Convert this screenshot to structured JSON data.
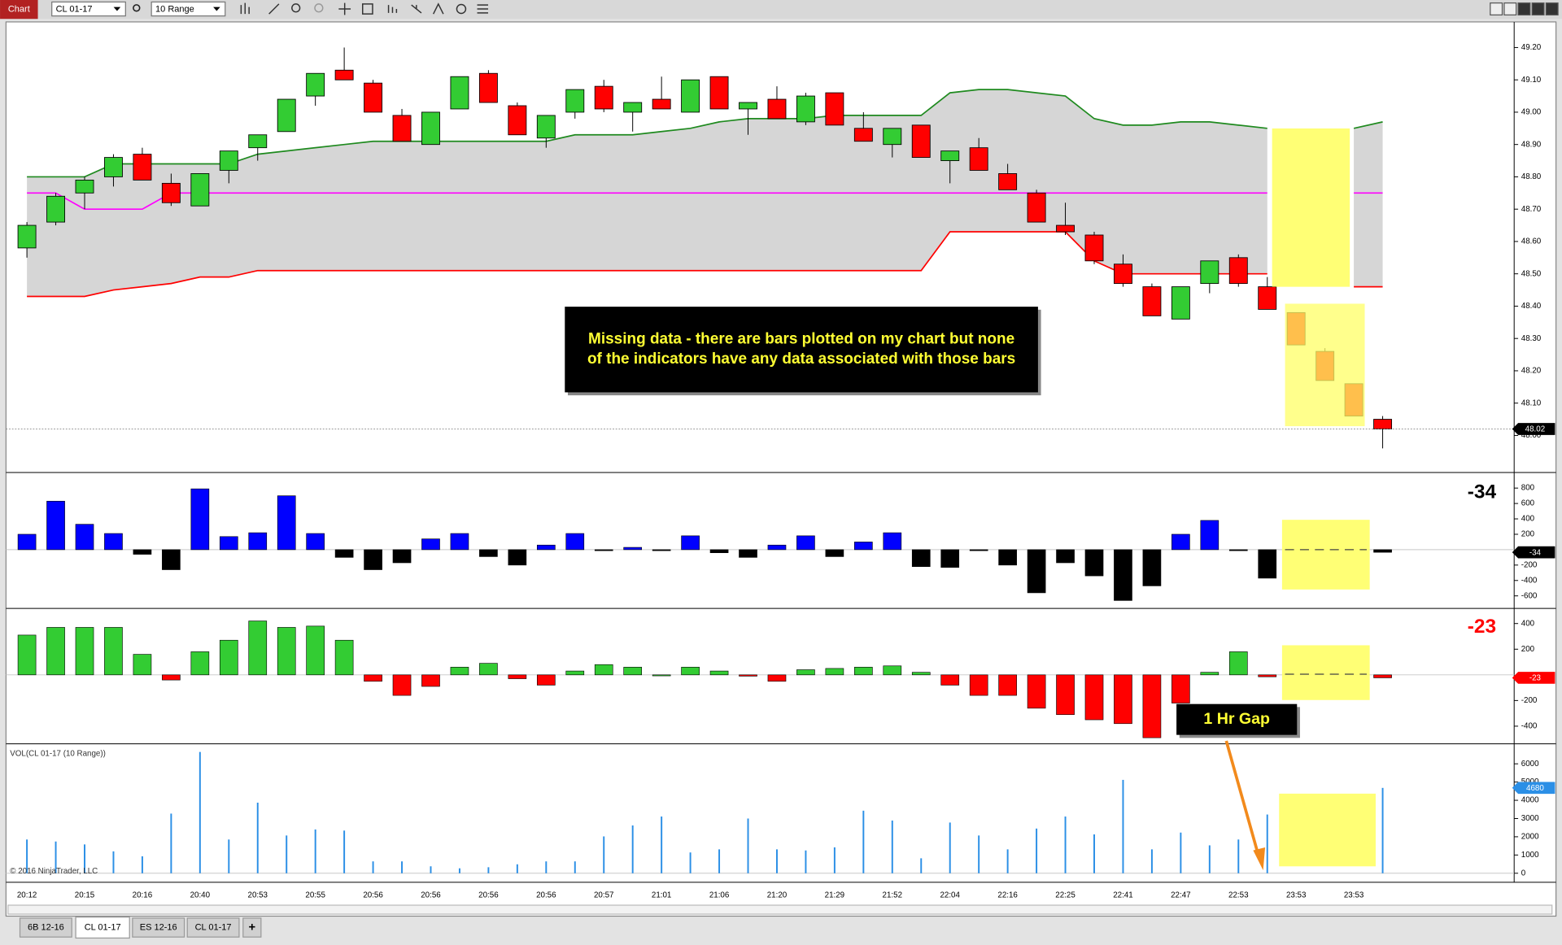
{
  "window": {
    "title": "Chart",
    "instrument": "CL 01-17",
    "bar_type": "10 Range"
  },
  "tabs": [
    "6B 12-16",
    "CL 01-17",
    "ES 12-16",
    "CL 01-17"
  ],
  "new_tab": "+",
  "annotations": [
    "Missing data - there are bars plotted on my chart but none of the indicators have any data associated with those bars",
    "1 Hr Gap"
  ],
  "chart_data": [
    {
      "type": "candlestick",
      "categories": [
        "20:12",
        null,
        "20:15",
        null,
        "20:16",
        null,
        "20:40",
        null,
        "20:53",
        null,
        "20:55",
        null,
        "20:56",
        null,
        "20:56",
        null,
        "20:56",
        null,
        "20:56",
        null,
        "20:57",
        null,
        "21:01",
        null,
        "21:06",
        null,
        "21:20",
        null,
        "21:29",
        null,
        "21:52",
        null,
        "22:04",
        null,
        "22:16",
        null,
        "22:25",
        null,
        "22:41",
        null,
        "22:47",
        null,
        "22:53",
        null,
        "23:53",
        null,
        "23:53",
        null
      ],
      "open": [
        48.58,
        48.66,
        48.75,
        48.8,
        48.87,
        48.78,
        48.71,
        48.82,
        48.89,
        48.94,
        49.05,
        49.13,
        49.09,
        48.99,
        48.9,
        49.01,
        49.12,
        49.02,
        48.92,
        49.0,
        49.08,
        49.0,
        49.04,
        49.0,
        49.11,
        49.01,
        49.04,
        48.97,
        49.06,
        48.95,
        48.9,
        48.96,
        48.85,
        48.89,
        48.81,
        48.75,
        48.65,
        48.62,
        48.53,
        48.46,
        48.36,
        48.47,
        48.55,
        48.46,
        48.38,
        48.26,
        48.16,
        48.05
      ],
      "high": [
        48.66,
        48.75,
        48.8,
        48.87,
        48.89,
        48.81,
        48.81,
        48.88,
        48.93,
        49.04,
        49.12,
        49.2,
        49.1,
        49.01,
        49.0,
        49.11,
        49.13,
        49.03,
        48.99,
        49.07,
        49.1,
        49.03,
        49.11,
        49.1,
        49.11,
        49.03,
        49.08,
        49.06,
        49.06,
        49.0,
        48.95,
        48.96,
        48.88,
        48.92,
        48.84,
        48.76,
        48.72,
        48.63,
        48.56,
        48.47,
        48.46,
        48.54,
        48.56,
        48.49,
        48.38,
        48.27,
        48.16,
        48.06
      ],
      "low": [
        48.55,
        48.65,
        48.7,
        48.77,
        48.79,
        48.71,
        48.71,
        48.78,
        48.85,
        48.94,
        49.02,
        49.1,
        49.0,
        48.91,
        48.9,
        49.01,
        49.03,
        48.93,
        48.89,
        48.98,
        49.0,
        48.94,
        49.01,
        49.0,
        49.01,
        48.93,
        48.98,
        48.96,
        48.96,
        48.91,
        48.86,
        48.86,
        48.78,
        48.82,
        48.76,
        48.66,
        48.62,
        48.53,
        48.46,
        48.37,
        48.36,
        48.44,
        48.46,
        48.39,
        48.28,
        48.17,
        48.06,
        47.96
      ],
      "close": [
        48.65,
        48.74,
        48.79,
        48.86,
        48.79,
        48.72,
        48.81,
        48.88,
        48.93,
        49.04,
        49.12,
        49.1,
        49.0,
        48.91,
        49.0,
        49.11,
        49.03,
        48.93,
        48.99,
        49.07,
        49.01,
        49.03,
        49.01,
        49.1,
        49.01,
        49.03,
        48.98,
        49.05,
        48.96,
        48.91,
        48.95,
        48.86,
        48.88,
        48.82,
        48.76,
        48.66,
        48.63,
        48.54,
        48.47,
        48.37,
        48.46,
        48.54,
        48.47,
        48.39,
        48.28,
        48.17,
        48.06,
        48.02
      ],
      "up_color": "#33cc33",
      "down_color": "#ff0000",
      "band_fill": "#d6d6d6",
      "lines": [
        {
          "color": "#1f8a1f",
          "values": [
            48.8,
            48.8,
            48.8,
            48.84,
            48.84,
            48.84,
            48.84,
            48.84,
            48.87,
            48.88,
            48.89,
            48.9,
            48.91,
            48.91,
            48.91,
            48.91,
            48.91,
            48.91,
            48.91,
            48.93,
            48.93,
            48.93,
            48.94,
            48.95,
            48.97,
            48.98,
            48.98,
            48.98,
            48.99,
            48.99,
            48.99,
            48.99,
            49.06,
            49.07,
            49.07,
            49.06,
            49.05,
            48.98,
            48.96,
            48.96,
            48.97,
            48.97,
            48.96,
            48.95,
            null,
            null,
            48.95,
            48.97
          ]
        },
        {
          "color": "#ff00ff",
          "values": [
            48.75,
            48.75,
            48.7,
            48.7,
            48.7,
            48.75,
            48.75,
            48.75,
            48.75,
            48.75,
            48.75,
            48.75,
            48.75,
            48.75,
            48.75,
            48.75,
            48.75,
            48.75,
            48.75,
            48.75,
            48.75,
            48.75,
            48.75,
            48.75,
            48.75,
            48.75,
            48.75,
            48.75,
            48.75,
            48.75,
            48.75,
            48.75,
            48.75,
            48.75,
            48.75,
            48.75,
            48.75,
            48.75,
            48.75,
            48.75,
            48.75,
            48.75,
            48.75,
            48.75,
            null,
            null,
            48.75,
            48.75
          ]
        },
        {
          "color": "#ff0000",
          "values": [
            48.43,
            48.43,
            48.43,
            48.45,
            48.46,
            48.47,
            48.49,
            48.49,
            48.51,
            48.51,
            48.51,
            48.51,
            48.51,
            48.51,
            48.51,
            48.51,
            48.51,
            48.51,
            48.51,
            48.51,
            48.51,
            48.51,
            48.51,
            48.51,
            48.51,
            48.51,
            48.51,
            48.51,
            48.51,
            48.51,
            48.51,
            48.51,
            48.63,
            48.63,
            48.63,
            48.63,
            48.63,
            48.54,
            48.5,
            48.5,
            48.5,
            48.5,
            48.5,
            48.5,
            null,
            null,
            48.46,
            48.46
          ]
        }
      ],
      "ylim": [
        47.89,
        49.27
      ],
      "yticks": [
        {
          "value": 49.2,
          "label": "49.20"
        },
        {
          "value": 49.1,
          "label": "49.10"
        },
        {
          "value": 49.0,
          "label": "49.00"
        },
        {
          "value": 48.9,
          "label": "48.90"
        },
        {
          "value": 48.8,
          "label": "48.80"
        },
        {
          "value": 48.7,
          "label": "48.70"
        },
        {
          "value": 48.6,
          "label": "48.60"
        },
        {
          "value": 48.5,
          "label": "48.50"
        },
        {
          "value": 48.4,
          "label": "48.40"
        },
        {
          "value": 48.3,
          "label": "48.30"
        },
        {
          "value": 48.2,
          "label": "48.20"
        },
        {
          "value": 48.1,
          "label": "48.10"
        },
        {
          "value": 48.0,
          "label": "48.00"
        }
      ]
    },
    {
      "type": "bar",
      "values": [
        200,
        630,
        330,
        210,
        -60,
        -260,
        790,
        170,
        220,
        700,
        210,
        -100,
        -260,
        -170,
        140,
        210,
        -90,
        -200,
        60,
        210,
        -10,
        30,
        -10,
        180,
        -40,
        -100,
        60,
        180,
        -90,
        100,
        220,
        -220,
        -230,
        -10,
        -200,
        -560,
        -170,
        -340,
        -660,
        -470,
        200,
        380,
        -10,
        -370,
        null,
        null,
        null,
        -34
      ],
      "colors": {
        "up": "#0000ff",
        "down": "#000000"
      },
      "show_last_value": true,
      "ylim": [
        -750,
        970
      ],
      "yticks": [
        800,
        600,
        400,
        200,
        -200,
        -400,
        -600
      ]
    },
    {
      "type": "bar",
      "values": [
        310,
        370,
        370,
        370,
        160,
        -40,
        180,
        270,
        420,
        370,
        380,
        270,
        -50,
        -160,
        -90,
        60,
        90,
        -30,
        -80,
        30,
        80,
        60,
        0,
        60,
        30,
        -10,
        -50,
        40,
        50,
        60,
        70,
        20,
        -80,
        -160,
        -160,
        -260,
        -310,
        -350,
        -380,
        -490,
        -220,
        20,
        180,
        -15,
        null,
        null,
        null,
        -23
      ],
      "colors": {
        "up": "#33cc33",
        "down": "#ff0000"
      },
      "show_last_value": true,
      "ylim": [
        -530,
        510
      ],
      "yticks": [
        400,
        200,
        -200,
        -400
      ]
    },
    {
      "type": "bar",
      "title": "VOL(CL 01-17 (10 Range))",
      "note": "© 2016 NinjaTrader, LLC",
      "values": [
        1850,
        1740,
        1580,
        1200,
        930,
        3270,
        6650,
        1850,
        3870,
        2070,
        2400,
        2340,
        650,
        650,
        380,
        270,
        330,
        490,
        650,
        650,
        2020,
        2620,
        3110,
        1140,
        1310,
        3000,
        1310,
        1250,
        1420,
        3430,
        2890,
        820,
        2780,
        2070,
        1310,
        2450,
        3110,
        2130,
        5120,
        1310,
        2230,
        1530,
        1850,
        3220,
        null,
        null,
        null,
        4680
      ],
      "color": "#2b8fe6",
      "ylim": [
        -440,
        7040
      ],
      "yticks": [
        6000,
        5000,
        4000,
        3000,
        2000,
        1000,
        0
      ]
    }
  ]
}
